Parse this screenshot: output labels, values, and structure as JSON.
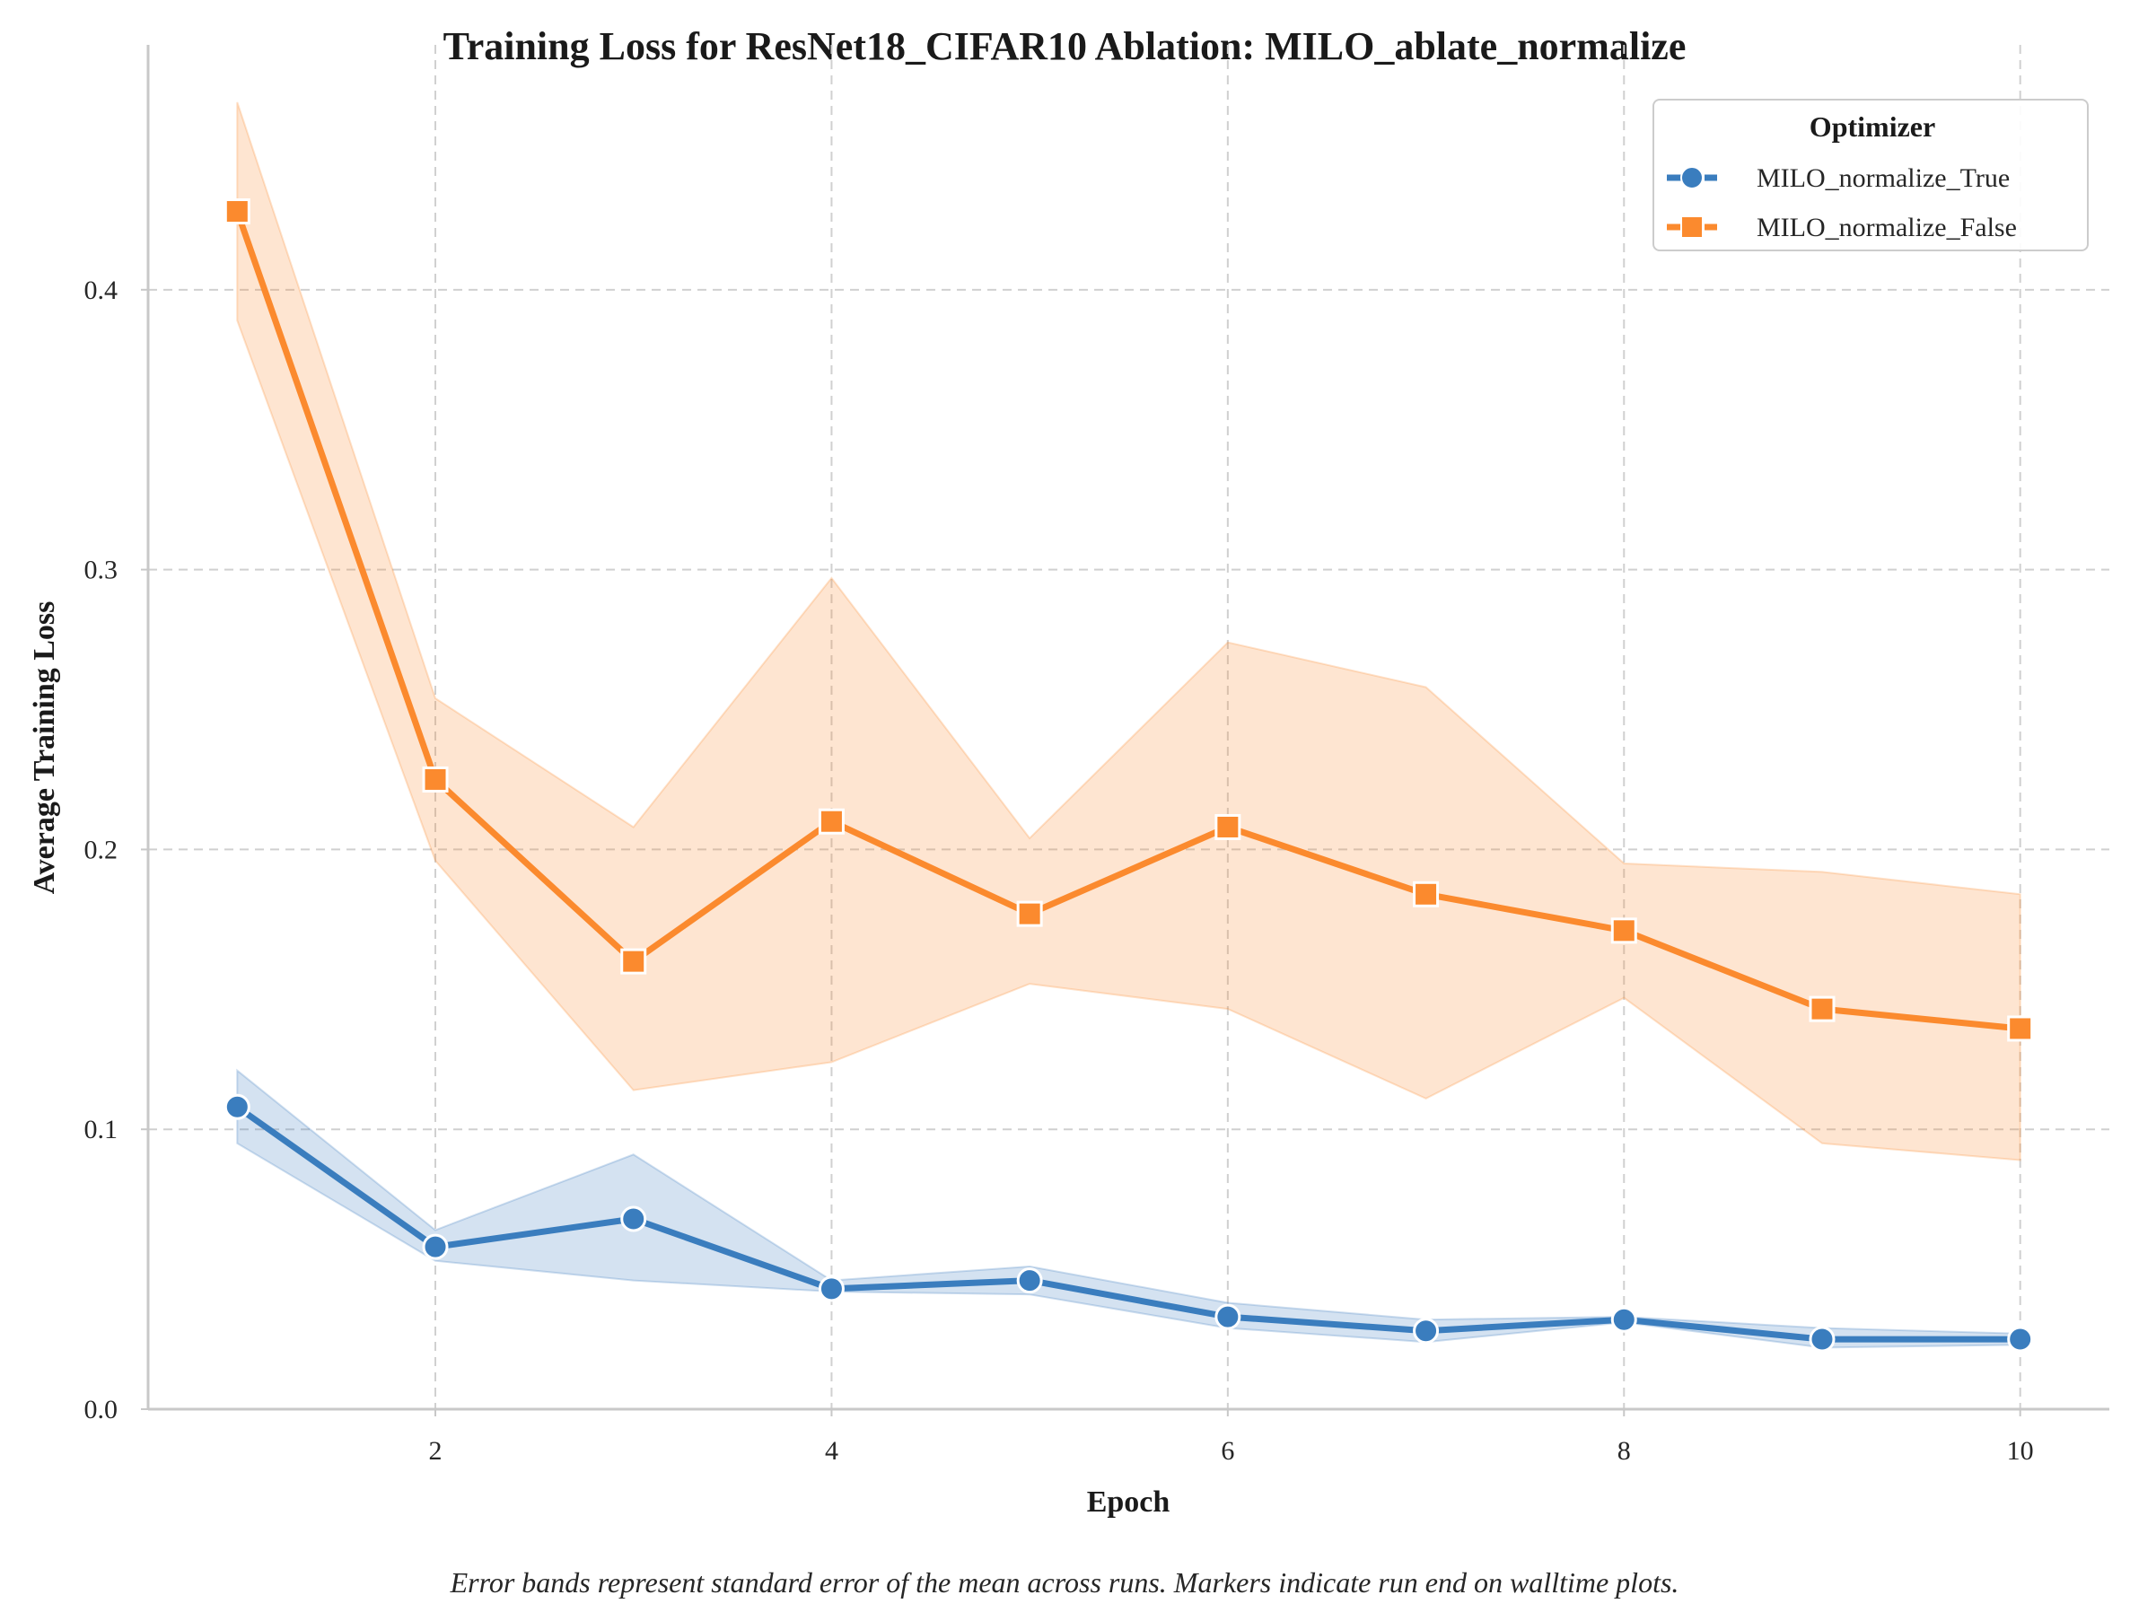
{
  "chart_data": {
    "type": "line",
    "title": "Training Loss for ResNet18_CIFAR10 Ablation: MILO_ablate_normalize",
    "xlabel": "Epoch",
    "ylabel": "Average Training Loss",
    "x": [
      1,
      2,
      3,
      4,
      5,
      6,
      7,
      8,
      9,
      10
    ],
    "xlim": [
      0.55,
      10.45
    ],
    "ylim": [
      0.0,
      0.4875
    ],
    "xticks": [
      "2",
      "4",
      "6",
      "8",
      "10"
    ],
    "xtick_values": [
      2,
      4,
      6,
      8,
      10
    ],
    "yticks": [
      "0.0",
      "0.1",
      "0.2",
      "0.3",
      "0.4"
    ],
    "ytick_values": [
      0.0,
      0.1,
      0.2,
      0.3,
      0.4
    ],
    "grid": true,
    "legend": {
      "title": "Optimizer",
      "placement": "top-right"
    },
    "series": [
      {
        "name": "MILO_normalize_True",
        "color": "#3a7dbe",
        "marker": "circle",
        "values": [
          0.108,
          0.058,
          0.068,
          0.043,
          0.046,
          0.033,
          0.028,
          0.032,
          0.025,
          0.025
        ],
        "lower": [
          0.095,
          0.053,
          0.046,
          0.042,
          0.041,
          0.029,
          0.024,
          0.031,
          0.022,
          0.023
        ],
        "upper": [
          0.121,
          0.064,
          0.091,
          0.046,
          0.051,
          0.038,
          0.032,
          0.033,
          0.029,
          0.027
        ]
      },
      {
        "name": "MILO_normalize_False",
        "color": "#fb8a2e",
        "marker": "square",
        "values": [
          0.428,
          0.225,
          0.16,
          0.21,
          0.177,
          0.208,
          0.184,
          0.171,
          0.143,
          0.136
        ],
        "lower": [
          0.389,
          0.196,
          0.114,
          0.124,
          0.152,
          0.143,
          0.111,
          0.147,
          0.095,
          0.089
        ],
        "upper": [
          0.467,
          0.254,
          0.208,
          0.297,
          0.204,
          0.274,
          0.258,
          0.195,
          0.192,
          0.184
        ]
      }
    ],
    "caption": "Error bands represent standard error of the mean across runs. Markers indicate run end on walltime plots."
  }
}
